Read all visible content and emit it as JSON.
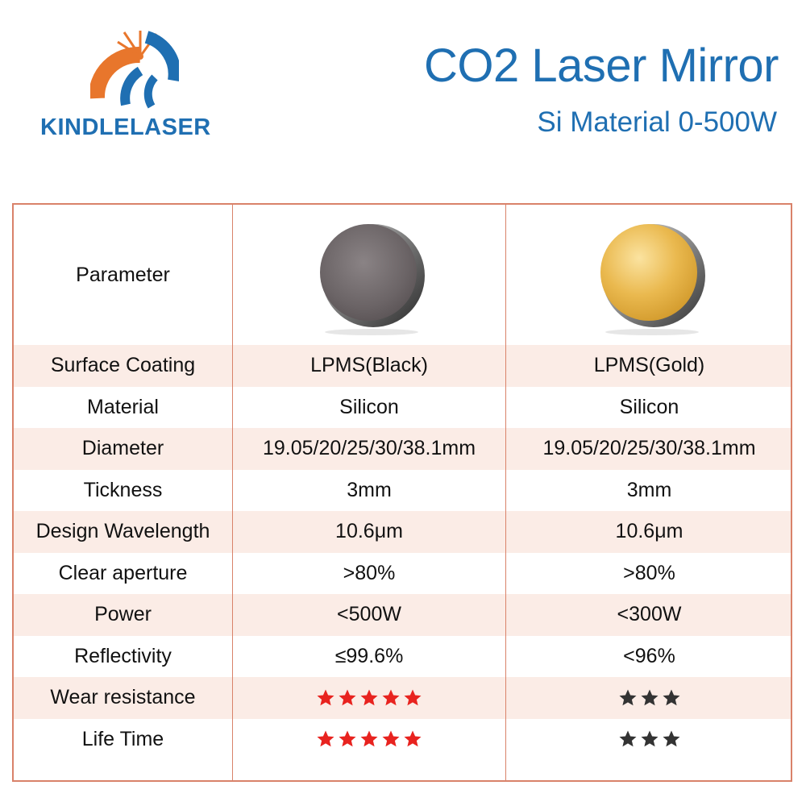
{
  "brand": {
    "logo_text": "KINDLELASER",
    "colors": {
      "blue": "#1f6fb2",
      "orange": "#e8762c"
    }
  },
  "header": {
    "title": "CO2 Laser Mirror",
    "subtitle": "Si Material 0-500W"
  },
  "table": {
    "header_label": "Parameter",
    "products": [
      {
        "image": "black-silicon-mirror",
        "color": "#6e6668"
      },
      {
        "image": "gold-silicon-mirror",
        "color": "#e6b24a"
      }
    ],
    "rows": [
      {
        "label": "Surface Coating",
        "black": "LPMS(Black)",
        "gold": "LPMS(Gold)"
      },
      {
        "label": "Material",
        "black": "Silicon",
        "gold": "Silicon"
      },
      {
        "label": "Diameter",
        "black": "19.05/20/25/30/38.1mm",
        "gold": "19.05/20/25/30/38.1mm"
      },
      {
        "label": "Tickness",
        "black": "3mm",
        "gold": "3mm"
      },
      {
        "label": "Design Wavelength",
        "black": "10.6μm",
        "gold": "10.6μm"
      },
      {
        "label": "Clear aperture",
        "black": ">80%",
        "gold": ">80%"
      },
      {
        "label": "Power",
        "black": "<500W",
        "gold": "<300W"
      },
      {
        "label": "Reflectivity",
        "black": "≤99.6%",
        "gold": "<96%"
      }
    ],
    "rating_rows": [
      {
        "label": "Wear resistance",
        "black_stars": 5,
        "gold_stars": 3
      },
      {
        "label": "Life Time",
        "black_stars": 5,
        "gold_stars": 3
      }
    ],
    "star_colors": {
      "black": "#e8231f",
      "gold": "#333333"
    }
  }
}
